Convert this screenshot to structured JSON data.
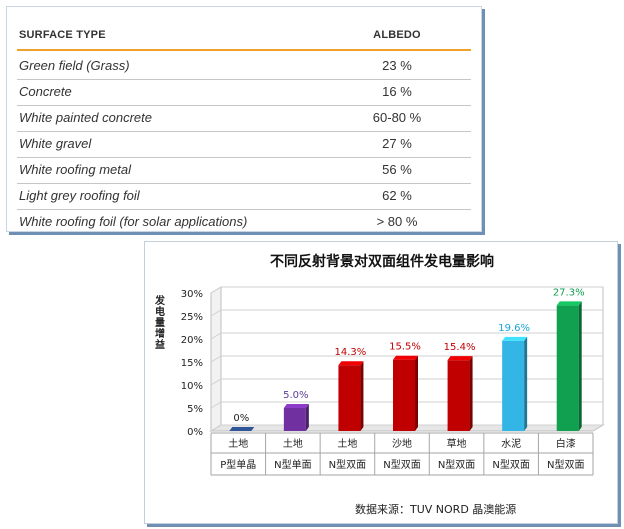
{
  "table": {
    "headers": [
      "SURFACE TYPE",
      "ALBEDO"
    ],
    "rows": [
      {
        "surface": "Green field (Grass)",
        "albedo": "23 %"
      },
      {
        "surface": "Concrete",
        "albedo": "16 %"
      },
      {
        "surface": "White painted concrete",
        "albedo": "60-80 %"
      },
      {
        "surface": "White gravel",
        "albedo": "27 %"
      },
      {
        "surface": "White roofing metal",
        "albedo": "56 %"
      },
      {
        "surface": "Light grey roofing foil",
        "albedo": "62 %"
      },
      {
        "surface": "White roofing foil (for solar applications)",
        "albedo": "> 80 %"
      }
    ],
    "accent_color": "#f0a12d"
  },
  "chart_data": {
    "type": "bar",
    "title": "不同反射背景对双面组件发电量影响",
    "ylabel": "发电量增益",
    "xlabel": "",
    "ylim": [
      0,
      30
    ],
    "yticks": [
      "0%",
      "5%",
      "10%",
      "15%",
      "20%",
      "25%",
      "30%"
    ],
    "categories": [
      {
        "line1": "土地",
        "line2": "P型单晶"
      },
      {
        "line1": "土地",
        "line2": "N型单面"
      },
      {
        "line1": "土地",
        "line2": "N型双面"
      },
      {
        "line1": "沙地",
        "line2": "N型双面"
      },
      {
        "line1": "草地",
        "line2": "N型双面"
      },
      {
        "line1": "水泥",
        "line2": "N型双面"
      },
      {
        "line1": "白漆",
        "line2": "N型双面"
      }
    ],
    "values": [
      0,
      5.0,
      14.3,
      15.5,
      15.4,
      19.6,
      27.3
    ],
    "value_labels": [
      "0%",
      "5.0%",
      "14.3%",
      "15.5%",
      "15.4%",
      "19.6%",
      "27.3%"
    ],
    "colors": [
      "#2f5597",
      "#7030a0",
      "#c00000",
      "#c00000",
      "#c00000",
      "#33b5e5",
      "#10a050"
    ],
    "label_colors": [
      "#222222",
      "#5b3a99",
      "#c00000",
      "#c00000",
      "#c00000",
      "#1aa3d9",
      "#10a050"
    ],
    "grid": true,
    "legend": "none",
    "source": "数据来源：TUV NORD 晶澳能源"
  }
}
